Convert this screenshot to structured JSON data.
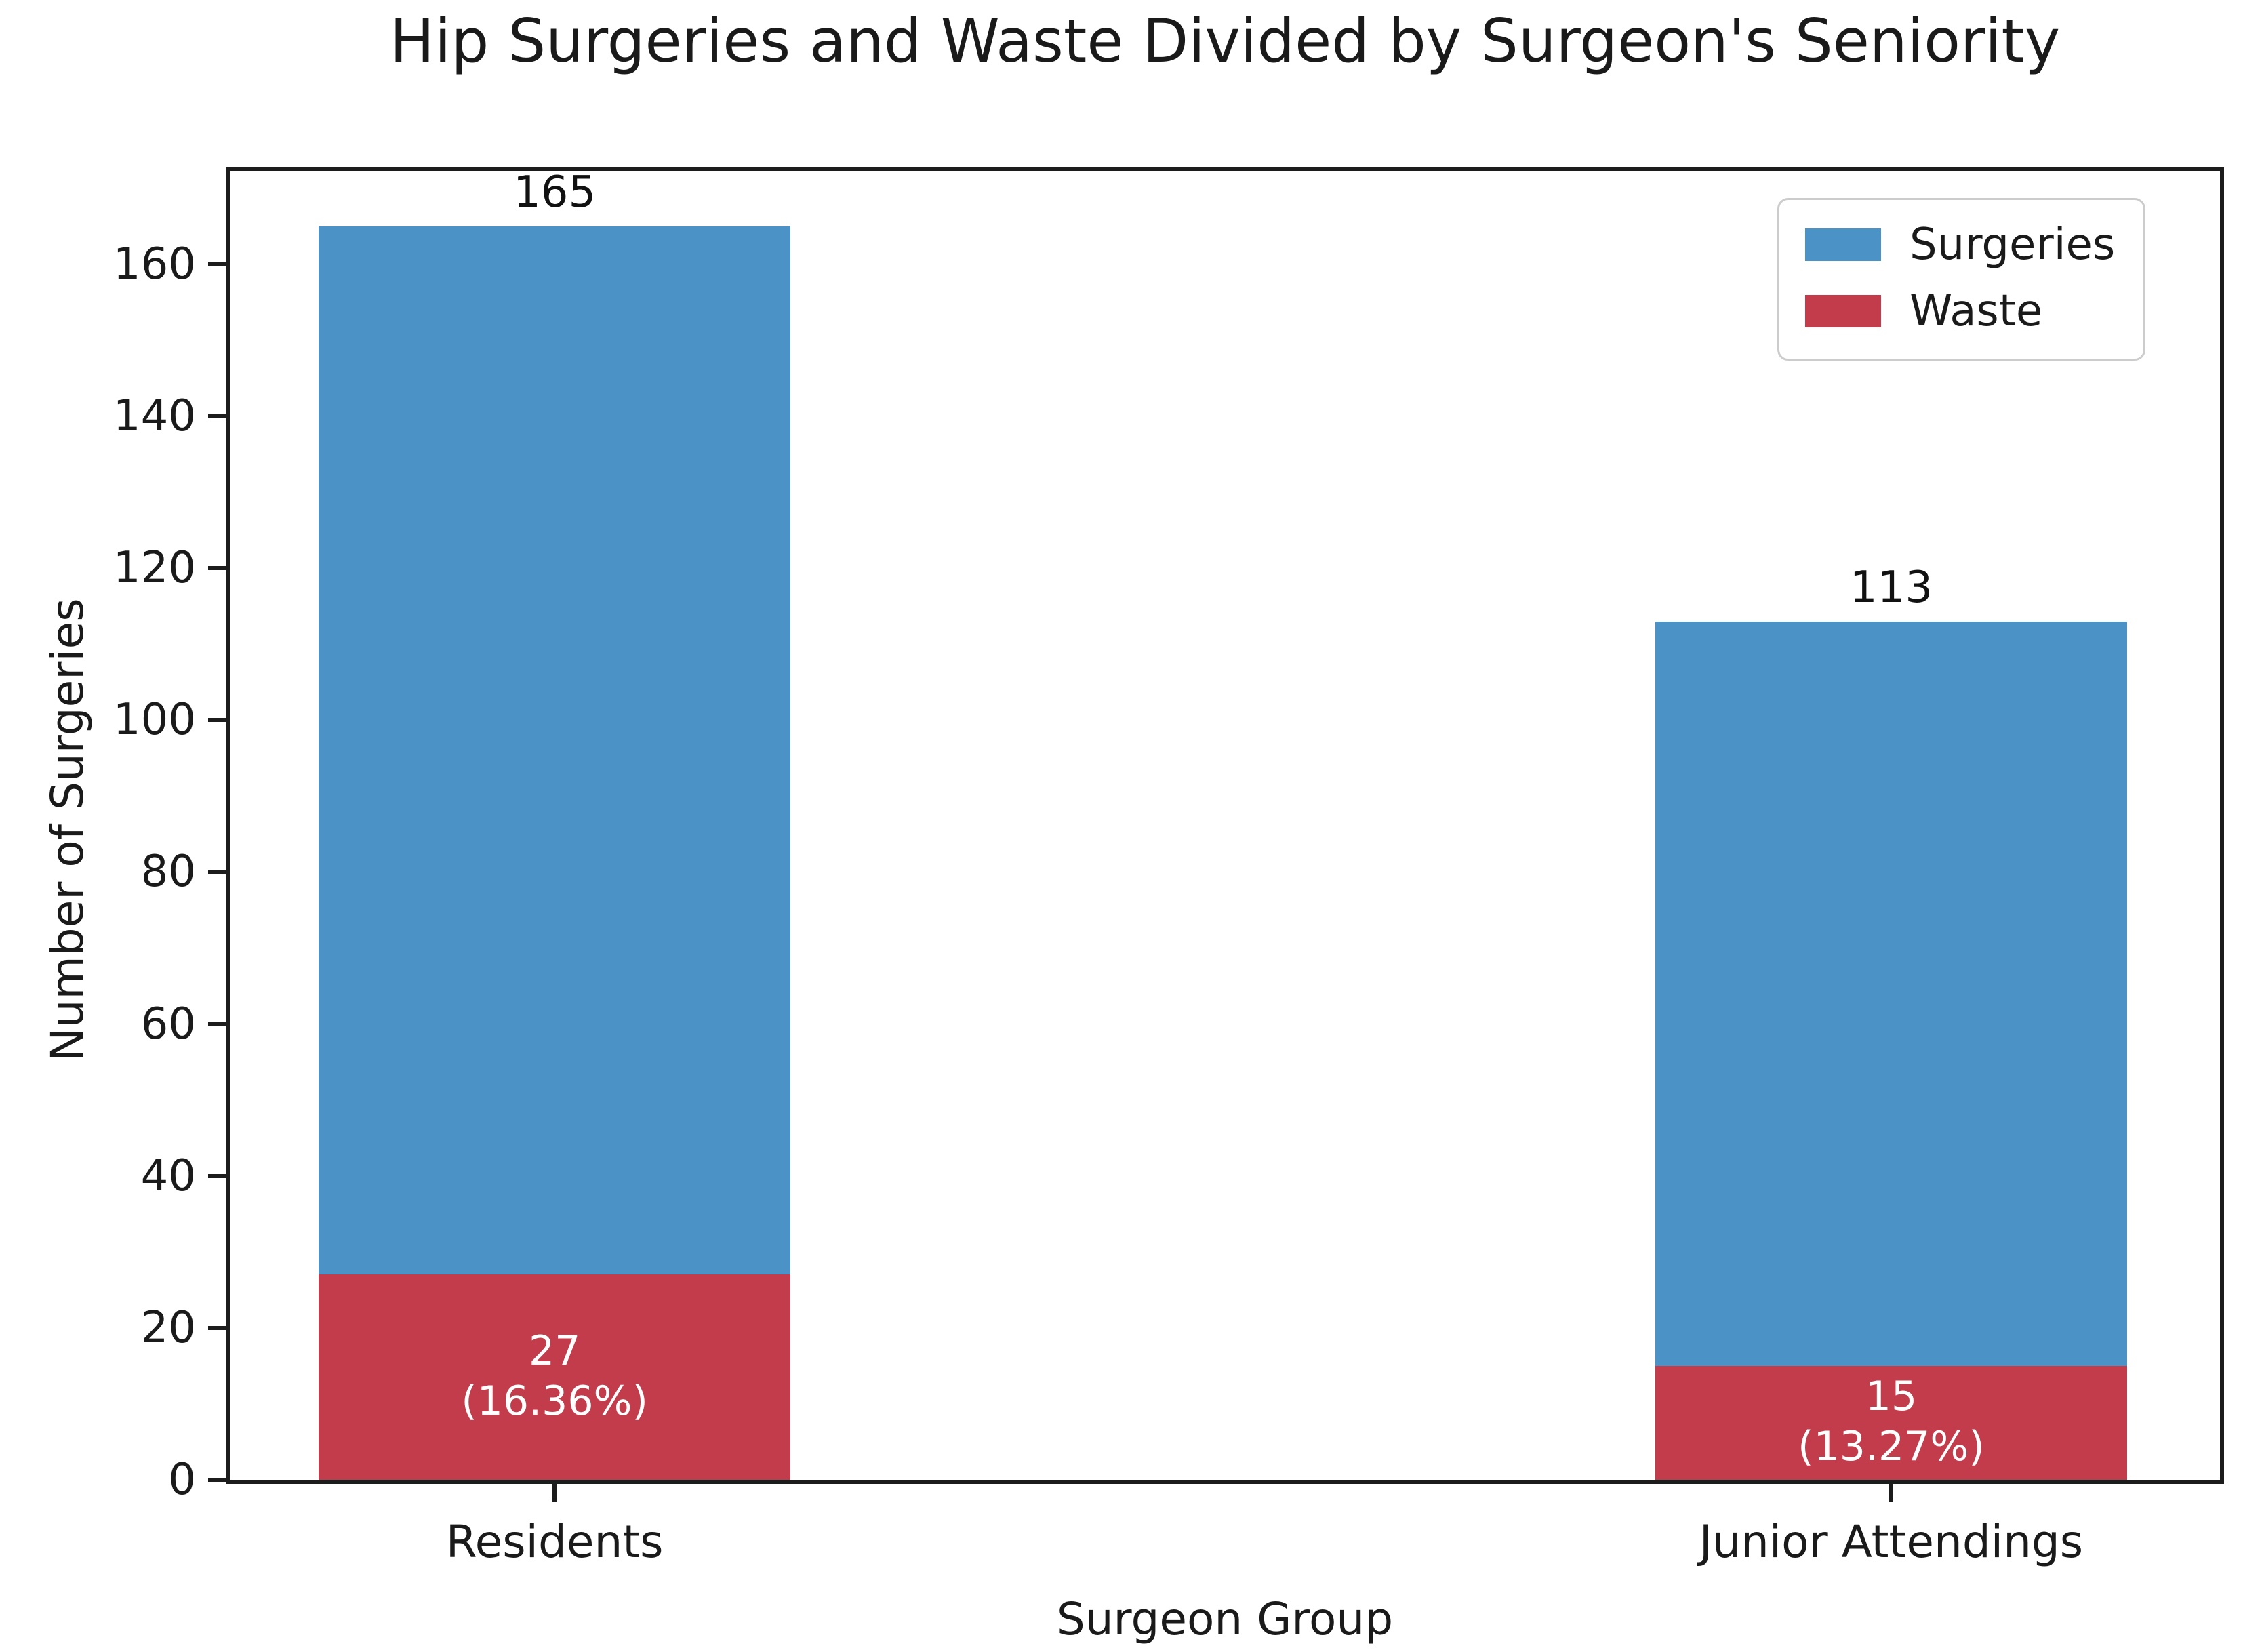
{
  "chart_data": {
    "type": "bar",
    "variant": "overlaid-stacked",
    "title": "Hip Surgeries and Waste Divided by Surgeon's Seniority",
    "xlabel": "Surgeon Group",
    "ylabel": "Number of Surgeries",
    "categories": [
      "Residents",
      "Junior Attendings"
    ],
    "series": [
      {
        "name": "Surgeries",
        "color": "#4B92C6",
        "values": [
          165,
          113
        ]
      },
      {
        "name": "Waste",
        "color": "#C23C4B",
        "values": [
          27,
          15
        ]
      }
    ],
    "bar_total_labels": [
      "165",
      "113"
    ],
    "waste_labels": [
      [
        "27",
        "(16.36%)"
      ],
      [
        "15",
        "(13.27%)"
      ]
    ],
    "yticks": [
      0,
      20,
      40,
      60,
      80,
      100,
      120,
      140,
      160
    ],
    "ylim": [
      0,
      172.3
    ],
    "grid": false,
    "legend": {
      "position": "upper right",
      "entries": [
        "Surgeries",
        "Waste"
      ]
    },
    "colors": {
      "axis": "#1c1c1c",
      "text": "#1a1a1a",
      "annotation_inside": "#ffffff",
      "legend_border": "#cccccc",
      "background": "#ffffff"
    }
  }
}
